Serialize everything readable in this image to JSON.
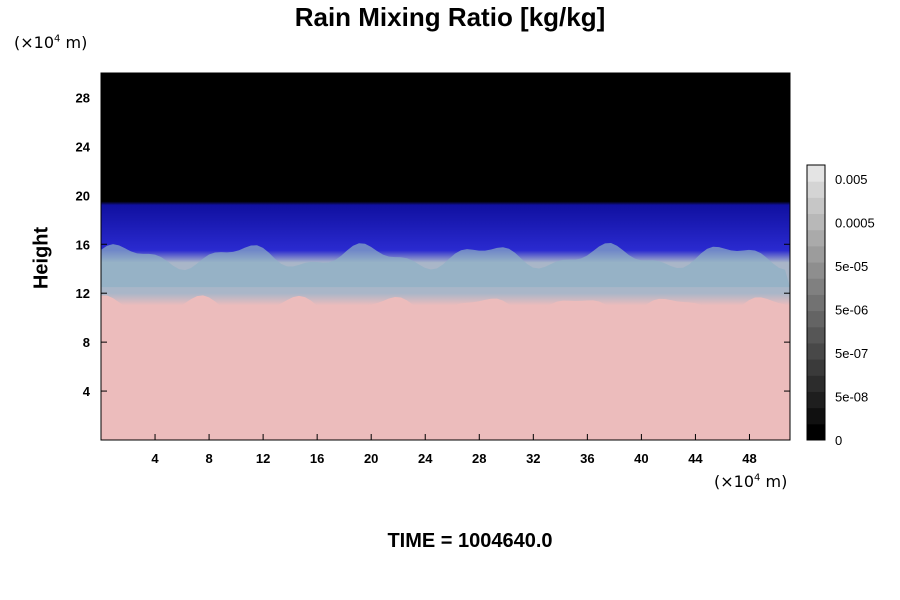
{
  "chart_data": {
    "type": "heatmap",
    "title": "Rain Mixing Ratio [kg/kg]",
    "ylabel": "Height",
    "xlabel": "",
    "x_unit": {
      "prefix": "(×10",
      "exp": "4",
      "suffix": " m)"
    },
    "y_unit": {
      "prefix": "(×10",
      "exp": "4",
      "suffix": " m)"
    },
    "xlim": [
      0,
      51
    ],
    "ylim": [
      0,
      30
    ],
    "xticks": [
      4,
      8,
      12,
      16,
      20,
      24,
      28,
      32,
      36,
      40,
      44,
      48
    ],
    "yticks": [
      4,
      8,
      12,
      16,
      20,
      24,
      28
    ],
    "field": {
      "layers": [
        {
          "name": "surface",
          "y_top": 11,
          "color": "#ecbcbc"
        },
        {
          "name": "mixed",
          "y_top": 15,
          "color": "#a9b6c8"
        },
        {
          "name": "upper",
          "y_top": 19.5,
          "color": "#2a2ad0"
        },
        {
          "name": "top",
          "y_top": 30,
          "color": "#000000"
        }
      ]
    },
    "colorbar": {
      "labels": [
        "0.005",
        "0.0005",
        "5e-05",
        "5e-06",
        "5e-07",
        "5e-08",
        "0"
      ],
      "levels": 17,
      "grays": [
        "#000000",
        "#101010",
        "#1e1e1e",
        "#2c2c2c",
        "#3a3a3a",
        "#484848",
        "#565656",
        "#646464",
        "#727272",
        "#808080",
        "#8e8e8e",
        "#9c9c9c",
        "#aaaaaa",
        "#b8b8b8",
        "#c6c6c6",
        "#d4d4d4",
        "#e4e4e4"
      ]
    }
  },
  "footer": {
    "time_text": "TIME = 1004640.0"
  }
}
